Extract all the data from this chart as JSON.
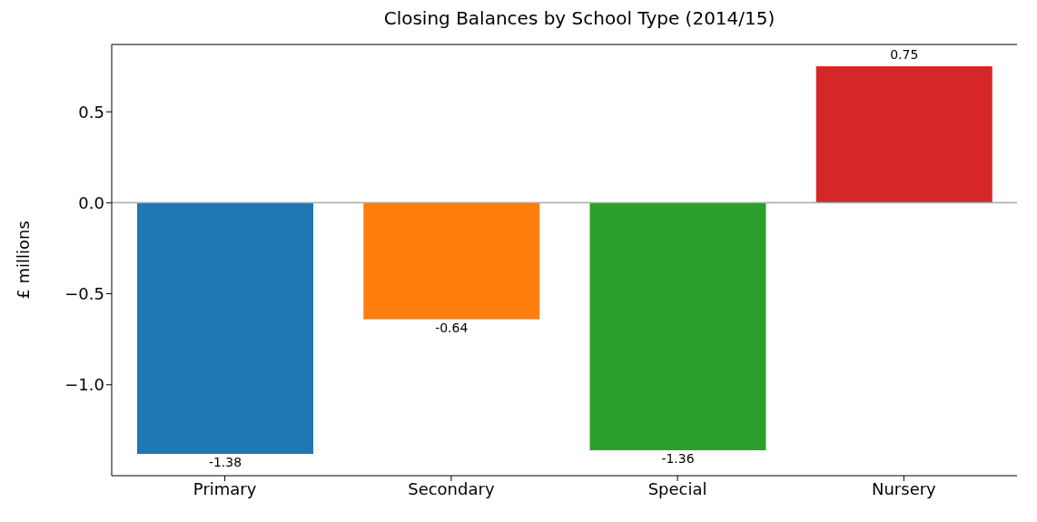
{
  "chart_data": {
    "type": "bar",
    "title": "Closing Balances by School Type (2014/15)",
    "ylabel": "£ millions",
    "categories": [
      "Primary",
      "Secondary",
      "Special",
      "Nursery"
    ],
    "values": [
      -1.38,
      -0.64,
      -1.36,
      0.75
    ],
    "colors": [
      "#1f77b4",
      "#ff7f0e",
      "#2ca02c",
      "#d62728"
    ],
    "ylim": [
      -1.5,
      0.87
    ],
    "yticks": [
      {
        "value": -1.0,
        "label": "−1.0"
      },
      {
        "value": -0.5,
        "label": "−0.5"
      },
      {
        "value": 0,
        "label": "0.0"
      },
      {
        "value": 0.5,
        "label": "0.5"
      }
    ],
    "ref_lines": [
      {
        "axis": "y",
        "value": 0,
        "color": "#aaaaaa"
      }
    ],
    "data_labels": true,
    "grid": false,
    "legend": false
  }
}
